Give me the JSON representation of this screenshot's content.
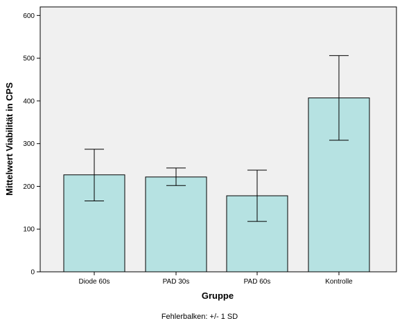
{
  "chart_data": {
    "type": "bar",
    "categories": [
      "Diode 60s",
      "PAD 30s",
      "PAD 60s",
      "Kontrolle"
    ],
    "values": [
      227,
      222,
      178,
      407
    ],
    "error_bars": {
      "type": "+/- 1 SD",
      "lower": [
        166,
        202,
        118,
        308
      ],
      "upper": [
        287,
        243,
        238,
        506
      ]
    },
    "xlabel": "Gruppe",
    "ylabel": "Mittelwert Viabilität in CPS",
    "ylim": [
      0,
      620
    ],
    "yticks": [
      "0",
      "100",
      "200",
      "300",
      "400",
      "500",
      "600"
    ],
    "ytick_values": [
      0,
      100,
      200,
      300,
      400,
      500,
      600
    ],
    "footnote": "Fehlerbalken: +/- 1 SD",
    "grid": false,
    "colors": {
      "bar_fill": "#b6e2e2",
      "plot_background": "#f0f0f0",
      "outline": "#000000"
    }
  }
}
